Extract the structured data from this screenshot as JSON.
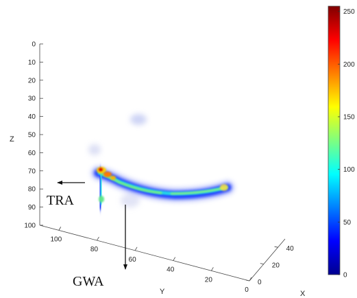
{
  "chart_data": {
    "type": "heatmap",
    "projection": "3d",
    "axes": {
      "z": {
        "label": "Z",
        "ticks": [
          0,
          10,
          20,
          30,
          40,
          50,
          60,
          70,
          80,
          90,
          100
        ],
        "range": [
          0,
          100
        ],
        "reversed": true
      },
      "y": {
        "label": "Y",
        "ticks": [
          100,
          80,
          60,
          40,
          20,
          0
        ],
        "range": [
          0,
          110
        ]
      },
      "x": {
        "label": "X",
        "ticks": [
          0,
          20,
          40
        ],
        "range": [
          0,
          50
        ]
      }
    },
    "colorbar": {
      "colormap": "jet",
      "range": [
        0,
        255
      ],
      "ticks": [
        0,
        50,
        100,
        150,
        200,
        250
      ]
    },
    "annotations": [
      "TRA",
      "GWA"
    ],
    "grid": false
  }
}
